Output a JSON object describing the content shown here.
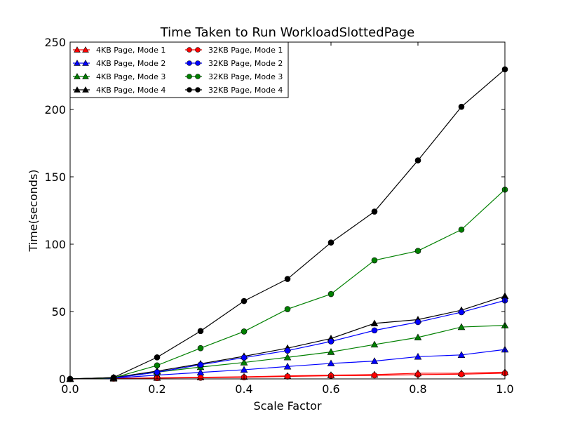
{
  "chart_data": {
    "type": "line",
    "title": "Time Taken to Run WorkloadSlottedPage",
    "xlabel": "Scale Factor",
    "ylabel": "Time(seconds)",
    "xlim": [
      0.0,
      1.0
    ],
    "ylim": [
      0,
      250
    ],
    "xticks": [
      0.0,
      0.2,
      0.4,
      0.6,
      0.8,
      1.0
    ],
    "xtick_labels": [
      "0.0",
      "0.2",
      "0.4",
      "0.6",
      "0.8",
      "1.0"
    ],
    "yticks": [
      0,
      50,
      100,
      150,
      200,
      250
    ],
    "ytick_labels": [
      "0",
      "50",
      "100",
      "150",
      "200",
      "250"
    ],
    "grid": false,
    "legend_position": "top-left",
    "x": [
      0.0,
      0.1,
      0.2,
      0.3,
      0.4,
      0.5,
      0.6,
      0.7,
      0.8,
      0.9,
      1.0
    ],
    "series": [
      {
        "name": "4KB Page, Mode 1",
        "color": "#ff0000",
        "marker": "triangle",
        "values": [
          0,
          0.3,
          0.8,
          1.2,
          1.6,
          2.2,
          2.8,
          3.2,
          4.2,
          4.2,
          5.0
        ]
      },
      {
        "name": "4KB Page, Mode 2",
        "color": "#0000ff",
        "marker": "triangle",
        "values": [
          0,
          0.6,
          2.8,
          4.8,
          6.8,
          9.2,
          11.5,
          13.2,
          16.5,
          17.8,
          21.8
        ]
      },
      {
        "name": "4KB Page, Mode 3",
        "color": "#008000",
        "marker": "triangle",
        "values": [
          0,
          0.8,
          5.0,
          8.8,
          12.2,
          16.0,
          20.0,
          25.5,
          30.8,
          38.5,
          39.7
        ]
      },
      {
        "name": "4KB Page, Mode 4",
        "color": "#000000",
        "marker": "triangle",
        "values": [
          0,
          1.0,
          5.8,
          11.2,
          16.8,
          22.8,
          30.0,
          41.2,
          44.0,
          51.0,
          61.5
        ]
      },
      {
        "name": "32KB Page, Mode 1",
        "color": "#ff0000",
        "marker": "circle",
        "values": [
          0,
          0.2,
          0.6,
          0.9,
          1.2,
          1.8,
          2.3,
          2.6,
          3.2,
          3.5,
          4.2
        ]
      },
      {
        "name": "32KB Page, Mode 2",
        "color": "#0000ff",
        "marker": "circle",
        "values": [
          0,
          0.6,
          5.0,
          10.5,
          15.8,
          21.0,
          27.8,
          36.0,
          42.2,
          49.5,
          58.2
        ]
      },
      {
        "name": "32KB Page, Mode 3",
        "color": "#008000",
        "marker": "circle",
        "values": [
          0,
          0.8,
          10.0,
          22.8,
          35.2,
          51.8,
          63.0,
          88.0,
          95.0,
          110.8,
          140.5
        ]
      },
      {
        "name": "32KB Page, Mode 4",
        "color": "#000000",
        "marker": "circle",
        "values": [
          0,
          1.0,
          16.0,
          35.5,
          57.8,
          74.2,
          101.2,
          124.2,
          162.2,
          202.0,
          229.8
        ]
      }
    ]
  }
}
